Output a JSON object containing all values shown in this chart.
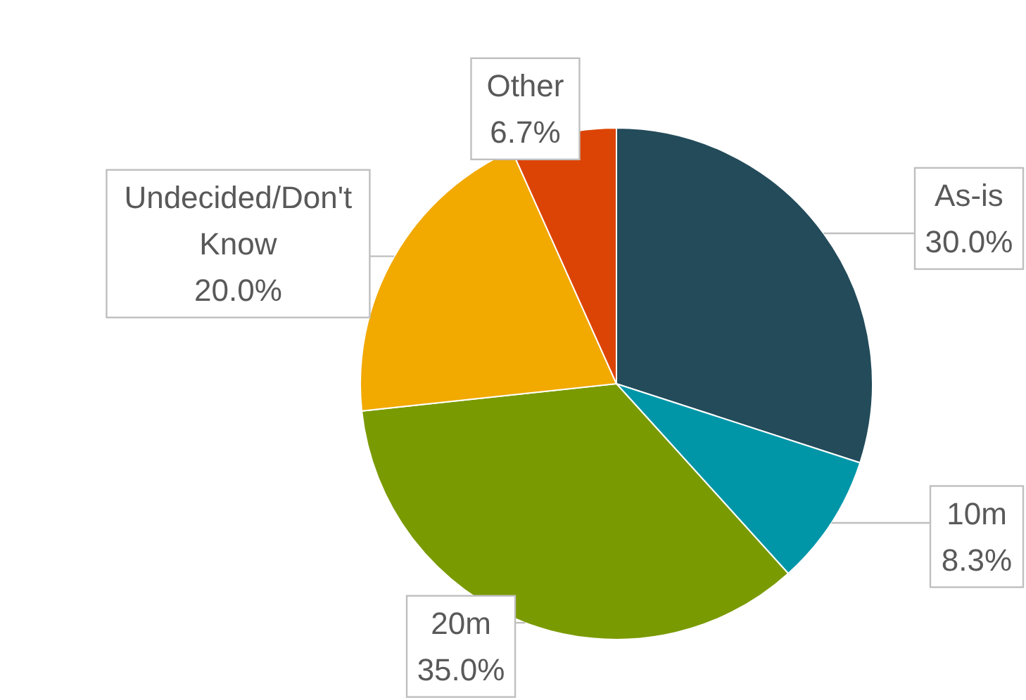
{
  "chart_data": {
    "type": "pie",
    "categories": [
      "As-is",
      "10m",
      "20m",
      "Undecided/Don't Know",
      "Other"
    ],
    "values": [
      30.0,
      8.3,
      35.0,
      20.0,
      6.7
    ],
    "colors": [
      "#234b5a",
      "#0096a8",
      "#7a9a01",
      "#f2a900",
      "#dc4405"
    ],
    "value_labels": [
      "30.0%",
      "8.3%",
      "35.0%",
      "20.0%",
      "6.7%"
    ]
  }
}
